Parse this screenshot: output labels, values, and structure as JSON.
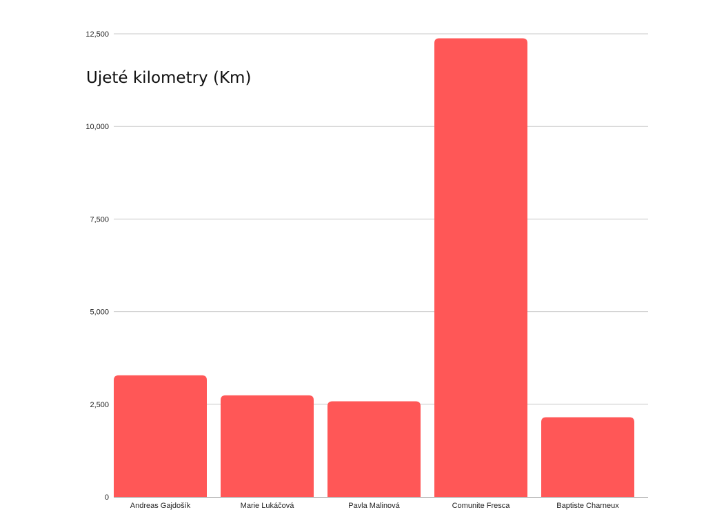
{
  "chart_data": {
    "type": "bar",
    "title": "Ujeté kilometry (Km)",
    "xlabel": "",
    "ylabel": "",
    "categories": [
      "Andreas Gajdošík",
      "Marie Lukáčová",
      "Pavla Malinová",
      "Comunite Fresca",
      "Baptiste Charneux"
    ],
    "values": [
      3280,
      2740,
      2580,
      12380,
      2150
    ],
    "ylim": [
      0,
      12500
    ],
    "yticks": [
      0,
      2500,
      5000,
      7500,
      10000,
      12500
    ],
    "ytick_labels": [
      "0",
      "2,500",
      "5,000",
      "7,500",
      "10,000",
      "12,500"
    ],
    "bar_color": "#ff5757",
    "grid": true
  }
}
